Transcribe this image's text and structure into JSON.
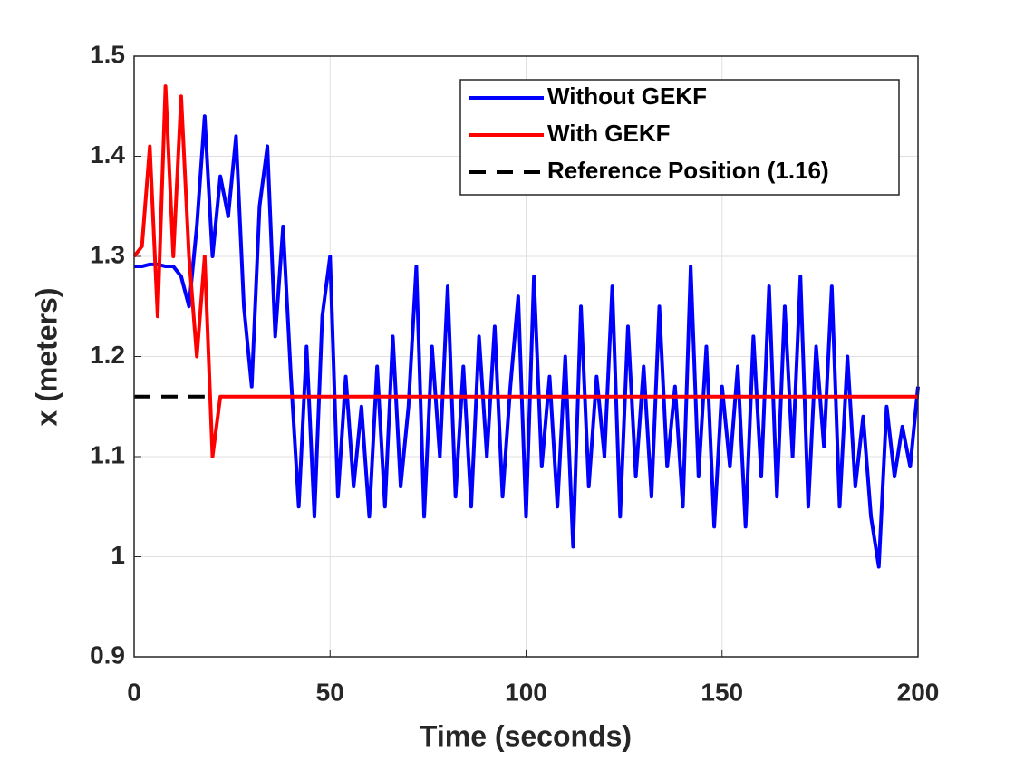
{
  "chart_data": {
    "type": "line",
    "xlabel": "Time (seconds)",
    "ylabel": "x (meters)",
    "x": [
      0,
      2,
      4,
      6,
      8,
      10,
      12,
      14,
      16,
      18,
      20,
      22,
      24,
      26,
      28,
      30,
      32,
      34,
      36,
      38,
      40,
      42,
      44,
      46,
      48,
      50,
      52,
      54,
      56,
      58,
      60,
      62,
      64,
      66,
      68,
      70,
      72,
      74,
      76,
      78,
      80,
      82,
      84,
      86,
      88,
      90,
      92,
      94,
      96,
      98,
      100,
      102,
      104,
      106,
      108,
      110,
      112,
      114,
      116,
      118,
      120,
      122,
      124,
      126,
      128,
      130,
      132,
      134,
      136,
      138,
      140,
      142,
      144,
      146,
      148,
      150,
      152,
      154,
      156,
      158,
      160,
      162,
      164,
      166,
      168,
      170,
      172,
      174,
      176,
      178,
      180,
      182,
      184,
      186,
      188,
      190,
      192,
      194,
      196,
      198,
      200
    ],
    "series": [
      {
        "name": "Without GEKF",
        "color": "#0000ff",
        "values": [
          1.29,
          1.29,
          1.292,
          1.292,
          1.29,
          1.29,
          1.28,
          1.25,
          1.33,
          1.44,
          1.3,
          1.38,
          1.34,
          1.42,
          1.25,
          1.17,
          1.35,
          1.41,
          1.22,
          1.33,
          1.18,
          1.05,
          1.21,
          1.04,
          1.24,
          1.3,
          1.06,
          1.18,
          1.07,
          1.15,
          1.04,
          1.19,
          1.05,
          1.22,
          1.07,
          1.15,
          1.29,
          1.04,
          1.21,
          1.1,
          1.27,
          1.06,
          1.19,
          1.05,
          1.22,
          1.1,
          1.23,
          1.06,
          1.17,
          1.26,
          1.04,
          1.28,
          1.09,
          1.18,
          1.05,
          1.2,
          1.01,
          1.25,
          1.07,
          1.18,
          1.1,
          1.27,
          1.04,
          1.23,
          1.08,
          1.19,
          1.06,
          1.25,
          1.09,
          1.17,
          1.05,
          1.29,
          1.08,
          1.21,
          1.03,
          1.17,
          1.09,
          1.19,
          1.03,
          1.22,
          1.08,
          1.27,
          1.06,
          1.25,
          1.1,
          1.28,
          1.05,
          1.21,
          1.11,
          1.27,
          1.05,
          1.2,
          1.07,
          1.14,
          1.04,
          0.99,
          1.15,
          1.08,
          1.13,
          1.09,
          1.17
        ]
      },
      {
        "name": "With GEKF",
        "color": "#ff0000",
        "values": [
          1.3,
          1.31,
          1.41,
          1.24,
          1.47,
          1.3,
          1.46,
          1.3,
          1.2,
          1.3,
          1.1,
          1.16,
          1.16,
          1.16,
          1.16,
          1.16,
          1.16,
          1.16,
          1.16,
          1.16,
          1.16,
          1.16,
          1.16,
          1.16,
          1.16,
          1.16,
          1.16,
          1.16,
          1.16,
          1.16,
          1.16,
          1.16,
          1.16,
          1.16,
          1.16,
          1.16,
          1.16,
          1.16,
          1.16,
          1.16,
          1.16,
          1.16,
          1.16,
          1.16,
          1.16,
          1.16,
          1.16,
          1.16,
          1.16,
          1.16,
          1.16,
          1.16,
          1.16,
          1.16,
          1.16,
          1.16,
          1.16,
          1.16,
          1.16,
          1.16,
          1.16,
          1.16,
          1.16,
          1.16,
          1.16,
          1.16,
          1.16,
          1.16,
          1.16,
          1.16,
          1.16,
          1.16,
          1.16,
          1.16,
          1.16,
          1.16,
          1.16,
          1.16,
          1.16,
          1.16,
          1.16,
          1.16,
          1.16,
          1.16,
          1.16,
          1.16,
          1.16,
          1.16,
          1.16,
          1.16,
          1.16,
          1.16,
          1.16,
          1.16,
          1.16,
          1.16,
          1.16,
          1.16,
          1.16,
          1.16,
          1.16
        ]
      },
      {
        "name": "Reference Position (1.16)",
        "color": "#000000",
        "dashed": true,
        "values": [
          1.16,
          1.16,
          1.16,
          1.16,
          1.16,
          1.16,
          1.16,
          1.16,
          1.16,
          1.16,
          null,
          null,
          null,
          null,
          null,
          null,
          null,
          null,
          null,
          null,
          null,
          null,
          null,
          null,
          null,
          null,
          null,
          null,
          null,
          null,
          null,
          null,
          null,
          null,
          null,
          null,
          null,
          null,
          null,
          null,
          null,
          null,
          null,
          null,
          null,
          null,
          null,
          null,
          null,
          null,
          null,
          null,
          null,
          null,
          null,
          null,
          null,
          null,
          null,
          null,
          null,
          null,
          null,
          null,
          null,
          null,
          null,
          null,
          null,
          null,
          null,
          null,
          null,
          null,
          null,
          null,
          null,
          null,
          null,
          null,
          null,
          null,
          null,
          null,
          null,
          null,
          null,
          null,
          null,
          null,
          null,
          null,
          null,
          null,
          null,
          null,
          null,
          null,
          null,
          null,
          null
        ]
      }
    ],
    "xlim": [
      0,
      200
    ],
    "xticks": [
      0,
      50,
      100,
      150,
      200
    ],
    "ylim": [
      0.9,
      1.5
    ],
    "yticks": [
      0.9,
      1,
      1.1,
      1.2,
      1.3,
      1.4,
      1.5
    ],
    "grid": true,
    "legend": "upper right"
  }
}
